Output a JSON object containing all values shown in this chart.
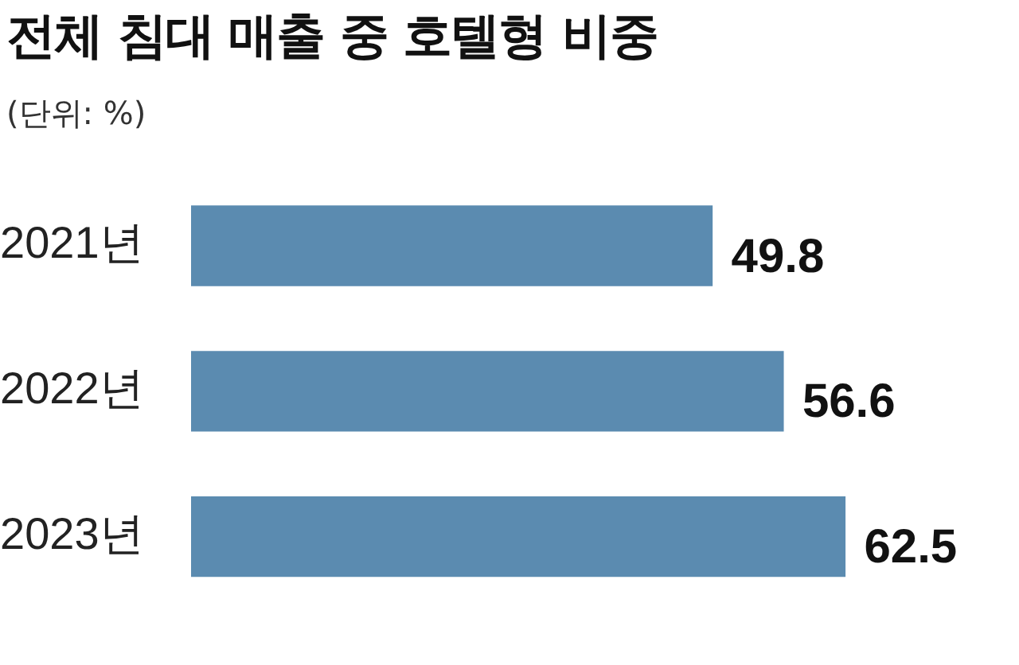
{
  "chart_data": {
    "type": "bar",
    "orientation": "horizontal",
    "title": "전체 침대 매출 중 호텔형 비중",
    "subtitle": "(단위: %)",
    "categories": [
      "2021년",
      "2022년",
      "2023년"
    ],
    "values": [
      49.8,
      56.6,
      62.5
    ],
    "color": "#5b8bb0",
    "data_labels": true,
    "grid": false,
    "legend": false,
    "tick_labels": "y"
  }
}
